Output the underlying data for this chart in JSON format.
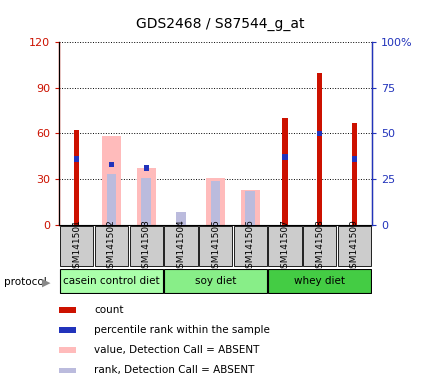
{
  "title": "GDS2468 / S87544_g_at",
  "samples": [
    "GSM141501",
    "GSM141502",
    "GSM141503",
    "GSM141504",
    "GSM141505",
    "GSM141506",
    "GSM141507",
    "GSM141508",
    "GSM141509"
  ],
  "count_values": [
    62,
    0,
    0,
    0,
    0,
    0,
    70,
    100,
    67
  ],
  "absent_value_bars": [
    0,
    58,
    37,
    0,
    31,
    23,
    0,
    0,
    0
  ],
  "percentile_rank": [
    36,
    33,
    31,
    0,
    0,
    0,
    37,
    50,
    36
  ],
  "absent_rank_bars": [
    0,
    33,
    31,
    8,
    29,
    22,
    0,
    0,
    0
  ],
  "protocols": [
    {
      "label": "casein control diet",
      "start": 0,
      "end": 3,
      "color": "#aaffaa"
    },
    {
      "label": "soy diet",
      "start": 3,
      "end": 6,
      "color": "#88ee88"
    },
    {
      "label": "whey diet",
      "start": 6,
      "end": 9,
      "color": "#44cc44"
    }
  ],
  "ylim_left": [
    0,
    120
  ],
  "ylim_right": [
    0,
    100
  ],
  "yticks_left": [
    0,
    30,
    60,
    90,
    120
  ],
  "ytick_labels_left": [
    "0",
    "30",
    "60",
    "90",
    "120"
  ],
  "yticks_right": [
    0,
    25,
    50,
    75,
    100
  ],
  "ytick_labels_right": [
    "0",
    "25",
    "50",
    "75",
    "100%"
  ],
  "color_count": "#cc1100",
  "color_percentile": "#2233bb",
  "color_absent_value": "#ffbbbb",
  "color_absent_rank": "#bbbbdd",
  "legend_items": [
    {
      "label": "count",
      "color": "#cc1100"
    },
    {
      "label": "percentile rank within the sample",
      "color": "#2233bb"
    },
    {
      "label": "value, Detection Call = ABSENT",
      "color": "#ffbbbb"
    },
    {
      "label": "rank, Detection Call = ABSENT",
      "color": "#bbbbdd"
    }
  ]
}
